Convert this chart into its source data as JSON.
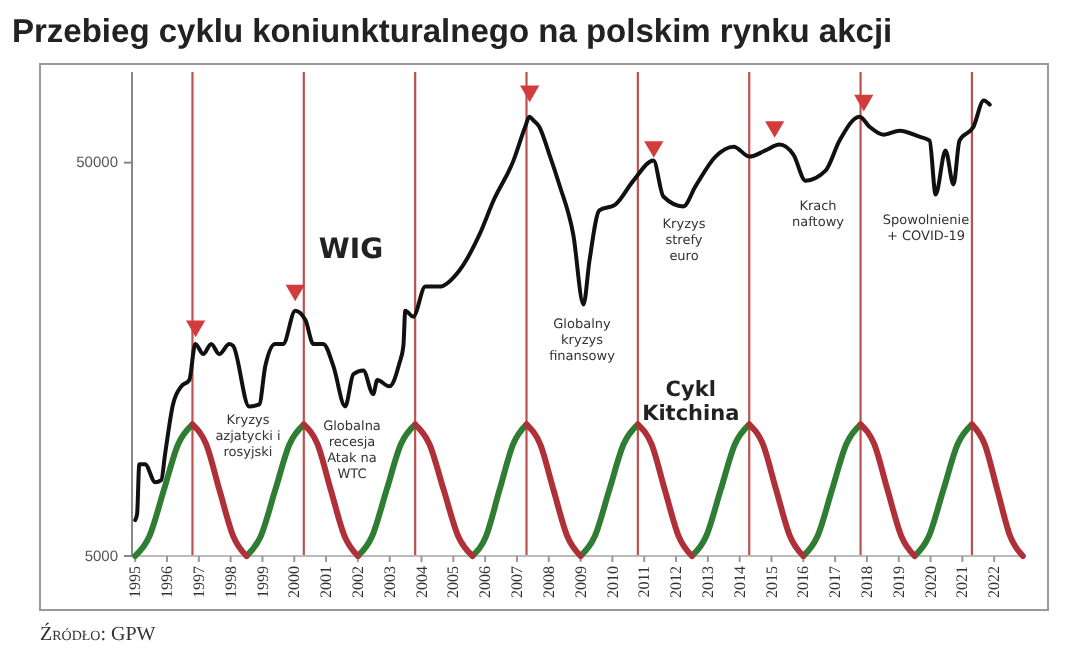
{
  "chart_data": {
    "type": "line",
    "title": "Przebieg cyklu koniunkturalnego na polskim rynku akcji",
    "log": "y",
    "xlim": [
      1994.9,
      2023
    ],
    "xticks": [
      1995,
      1996,
      1997,
      1998,
      1999,
      2000,
      2001,
      2002,
      2003,
      2004,
      2005,
      2006,
      2007,
      2008,
      2009,
      2010,
      2011,
      2012,
      2013,
      2014,
      2015,
      2016,
      2017,
      2018,
      2019,
      2020,
      2021,
      2022
    ],
    "ylim": [
      5000,
      85000
    ],
    "yticks": [
      5000,
      50000
    ],
    "series": [
      {
        "name": "WIG",
        "color": "#111111",
        "x": [
          1995.0,
          1995.06,
          1995.13,
          1995.31,
          1995.63,
          1995.82,
          1995.94,
          1996.19,
          1996.45,
          1996.7,
          1996.89,
          1997.14,
          1997.39,
          1997.64,
          1997.96,
          1998.08,
          1998.58,
          1998.9,
          1999.09,
          1999.4,
          1999.65,
          2000.03,
          2000.35,
          2000.6,
          2000.91,
          2001.23,
          2001.6,
          2001.86,
          2002.17,
          2002.48,
          2002.61,
          2002.99,
          2003.3,
          2003.43,
          2003.49,
          2003.74,
          2004.12,
          2004.56,
          2005.19,
          2005.82,
          2006.26,
          2006.89,
          2007.26,
          2007.39,
          2007.52,
          2007.7,
          2008.02,
          2008.33,
          2008.77,
          2009.09,
          2009.28,
          2009.59,
          2010.09,
          2010.66,
          2011.29,
          2011.6,
          2012.23,
          2012.61,
          2013.24,
          2013.81,
          2014.31,
          2014.81,
          2015.25,
          2015.69,
          2016.07,
          2016.7,
          2017.14,
          2017.77,
          2018.08,
          2018.52,
          2019.03,
          2019.65,
          2019.97,
          2020.16,
          2020.47,
          2020.72,
          2020.91,
          2021.35,
          2021.67,
          2021.86
        ],
        "values": [
          6170,
          6390,
          8560,
          8560,
          7700,
          7800,
          9080,
          12150,
          13500,
          14000,
          17300,
          16300,
          17300,
          16300,
          17300,
          17100,
          12000,
          12150,
          15200,
          17300,
          17300,
          21000,
          19900,
          17300,
          17300,
          15200,
          12000,
          14500,
          14800,
          12900,
          14000,
          13500,
          15400,
          17100,
          21000,
          20300,
          24200,
          24200,
          26600,
          32800,
          40000,
          50600,
          61700,
          65400,
          64000,
          61700,
          52400,
          44000,
          32800,
          21800,
          28200,
          37800,
          39100,
          45000,
          50600,
          41000,
          38700,
          43500,
          51800,
          54900,
          51800,
          53700,
          55600,
          52400,
          45000,
          47700,
          56900,
          65400,
          61700,
          58900,
          60300,
          58200,
          56900,
          41500,
          53700,
          44000,
          56900,
          61700,
          71900,
          70200
        ]
      },
      {
        "name": "Cykl Kitchina",
        "color": "#2e7d32",
        "x": [
          1995.0,
          1995.45,
          1995.9,
          1996.35,
          1996.8,
          1997.6,
          1998.5,
          1998.95,
          1999.4,
          1999.85,
          2000.3,
          2001.1,
          2002.0,
          2002.45,
          2002.9,
          2003.35,
          2003.8,
          2004.7,
          2005.6,
          2006.03,
          2006.45,
          2006.88,
          2007.3,
          2008.1,
          2009.0,
          2009.45,
          2009.9,
          2010.35,
          2010.8,
          2011.6,
          2012.5,
          2012.95,
          2013.4,
          2013.85,
          2014.3,
          2015.1,
          2016.0,
          2016.45,
          2016.9,
          2017.35,
          2017.8,
          2018.6,
          2019.5,
          2019.95,
          2020.4,
          2020.85,
          2021.3
        ],
        "values": [
          5000,
          5620,
          7350,
          9620,
          10800,
          null,
          5000,
          5620,
          7350,
          9620,
          10800,
          null,
          5000,
          5620,
          7350,
          9620,
          10800,
          null,
          5000,
          5620,
          7350,
          9620,
          10800,
          null,
          5000,
          5620,
          7350,
          9620,
          10800,
          null,
          5000,
          5620,
          7350,
          9620,
          10800,
          null,
          5000,
          5620,
          7350,
          9620,
          10800,
          null,
          5000,
          5620,
          7350,
          9620,
          10800
        ]
      },
      {
        "color": "#b0303a",
        "x": [
          1996.8,
          1997.23,
          1997.65,
          1998.08,
          1998.5,
          1999.4,
          2000.3,
          2000.73,
          2001.15,
          2001.58,
          2002.0,
          2002.9,
          2003.8,
          2004.25,
          2004.7,
          2005.15,
          2005.6,
          2006.45,
          2007.3,
          2007.73,
          2008.15,
          2008.58,
          2009.0,
          2009.9,
          2010.8,
          2011.23,
          2011.65,
          2012.08,
          2012.5,
          2013.4,
          2014.3,
          2014.73,
          2015.15,
          2015.58,
          2016.0,
          2016.9,
          2017.8,
          2018.23,
          2018.65,
          2019.08,
          2019.5,
          2020.4,
          2021.3,
          2021.7,
          2022.1,
          2022.5,
          2022.9
        ],
        "values": [
          10800,
          9620,
          7350,
          5620,
          5000,
          null,
          10800,
          9620,
          7350,
          5620,
          5000,
          null,
          10800,
          9620,
          7350,
          5620,
          5000,
          null,
          10800,
          9620,
          7350,
          5620,
          5000,
          null,
          10800,
          9620,
          7350,
          5620,
          5000,
          null,
          10800,
          9620,
          7350,
          5620,
          5000,
          null,
          10800,
          9620,
          7350,
          5620,
          5000,
          null,
          10800,
          9620,
          7350,
          5620,
          5000
        ]
      },
      {
        "type": "scatter",
        "marker": "triangle",
        "color": "#d23c3c",
        "x": [
          1996.9,
          2000.03,
          2007.4,
          2011.3,
          2015.1,
          2017.9
        ],
        "values": [
          19200,
          23700,
          76000,
          54900,
          61700,
          72000
        ]
      }
    ],
    "ref_lines": [
      {
        "axis": "x",
        "value": 1996.8,
        "color": "#c0504d"
      },
      {
        "axis": "x",
        "value": 2000.3,
        "color": "#c0504d"
      },
      {
        "axis": "x",
        "value": 2003.8,
        "color": "#c0504d"
      },
      {
        "axis": "x",
        "value": 2007.3,
        "color": "#c0504d"
      },
      {
        "axis": "x",
        "value": 2010.8,
        "color": "#c0504d"
      },
      {
        "axis": "x",
        "value": 2014.3,
        "color": "#c0504d"
      },
      {
        "axis": "x",
        "value": 2017.8,
        "color": "#c0504d"
      },
      {
        "axis": "x",
        "value": 2021.3,
        "color": "#c0504d"
      }
    ],
    "annotations": [
      "Kryzys\nazjatycki i\nrosyjski",
      "Globalna\nrecesja\nAtak na\nWTC",
      "Globalny\nkryzys\nfinansowy",
      "Kryzys\nstrefy\neuro",
      "Krach\nnaftowy",
      "Spowolnienie\n+ COVID-19",
      "Źródło: GPW"
    ]
  }
}
